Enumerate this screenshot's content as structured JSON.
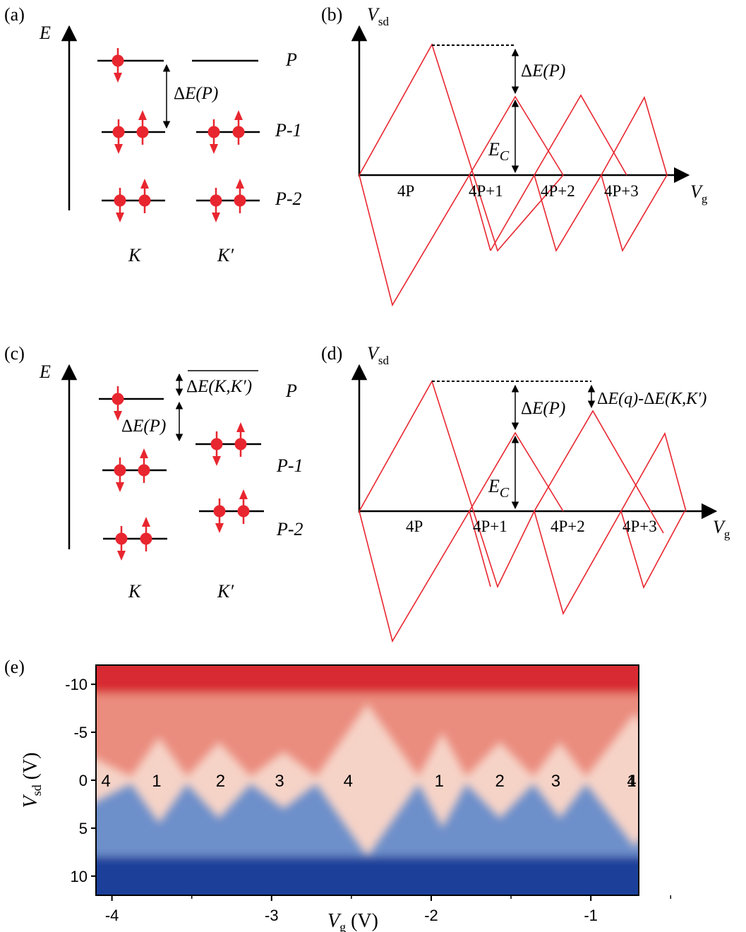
{
  "panels": {
    "a": {
      "letter": "(a)",
      "energy_axis": "E",
      "level_labels": [
        "P",
        "P-1",
        "P-2"
      ],
      "gap_label": "ΔE(P)",
      "valley_labels": [
        "K",
        "K′"
      ]
    },
    "b": {
      "letter": "(b)",
      "y_axis": {
        "main": "V",
        "sub": "sd"
      },
      "x_axis": {
        "main": "V",
        "sub": "g"
      },
      "gap_label": "ΔE(P)",
      "charging_label": {
        "main": "E",
        "sub": "C"
      },
      "region_labels": [
        "4P",
        "4P+1",
        "4P+2",
        "4P+3"
      ]
    },
    "c": {
      "letter": "(c)",
      "energy_axis": "E",
      "level_labels": [
        "P",
        "P-1",
        "P-2"
      ],
      "gap_label": "ΔE(P)",
      "splitting_label": "ΔE(K,K′)",
      "valley_labels": [
        "K",
        "K′"
      ]
    },
    "d": {
      "letter": "(d)",
      "y_axis": {
        "main": "V",
        "sub": "sd"
      },
      "x_axis": {
        "main": "V",
        "sub": "g"
      },
      "gap_label": "ΔE(P)",
      "diff_label": "ΔE(q)-ΔE(K,K′)",
      "charging_label": {
        "main": "E",
        "sub": "C"
      },
      "region_labels": [
        "4P",
        "4P+1",
        "4P+2",
        "4P+3"
      ]
    },
    "e": {
      "letter": "(e)",
      "y_axis": {
        "main": "V",
        "sub": "sd",
        "unit": " (V)"
      },
      "x_axis": {
        "main": "V",
        "sub": "g",
        "unit": " (V)"
      },
      "y_ticks": [
        "10",
        "5",
        "0",
        "-5",
        "-10"
      ],
      "x_ticks": [
        "-4",
        "-3",
        "-2",
        "-1"
      ],
      "filling_labels": [
        "4",
        "1",
        "2",
        "3",
        "4",
        "1",
        "2",
        "3",
        "4",
        "1"
      ]
    }
  },
  "colors": {
    "diamond": "#e8262f",
    "electron": "#e8262f",
    "axis": "#000000",
    "map_high": "#d82a30",
    "map_mid": "#f6d3c7",
    "map_low": "#1c3f9a"
  },
  "chart_data": [
    {
      "type": "heatmap",
      "title": "",
      "xlabel": "Vg (V)",
      "ylabel": "Vsd (V)",
      "xlim": [
        -4.1,
        -0.7
      ],
      "ylim": [
        -12,
        12
      ],
      "x_ticks": [
        -4,
        -3,
        -2,
        -1
      ],
      "y_ticks": [
        -10,
        -5,
        0,
        5,
        10
      ],
      "colormap": "blue-white-red",
      "diamond_centers_vg": [
        -4.05,
        -3.72,
        -3.32,
        -2.95,
        -2.52,
        -1.95,
        -1.57,
        -1.22,
        -0.73,
        -0.35
      ],
      "diamond_labels": [
        "4",
        "1",
        "2",
        "3",
        "4",
        "1",
        "2",
        "3",
        "4",
        "1"
      ],
      "diamond_vertices_vg": [
        -3.88,
        -3.53,
        -3.13,
        -2.72,
        -2.08,
        -1.78,
        -1.36,
        -1.03,
        -0.42
      ],
      "diamond_half_heights_v": [
        4,
        4.5,
        4,
        3,
        8,
        5,
        4,
        4,
        7
      ]
    }
  ]
}
